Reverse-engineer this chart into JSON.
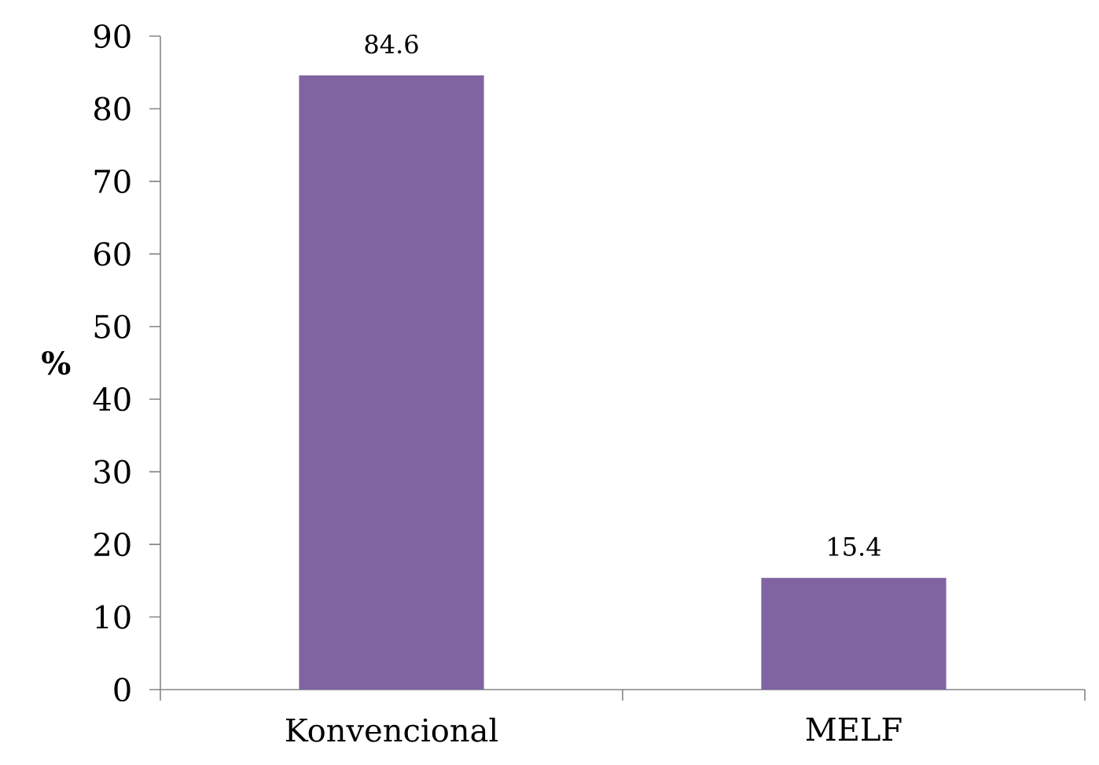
{
  "chart_data": {
    "type": "bar",
    "ylabel": "%",
    "categories": [
      "Konvencional",
      "MELF"
    ],
    "values": [
      84.6,
      15.4
    ],
    "color": "#8064a2",
    "ylim": [
      0,
      90
    ],
    "yticks": [
      0,
      10,
      20,
      30,
      40,
      50,
      60,
      70,
      80,
      90
    ],
    "data_labels": true
  }
}
